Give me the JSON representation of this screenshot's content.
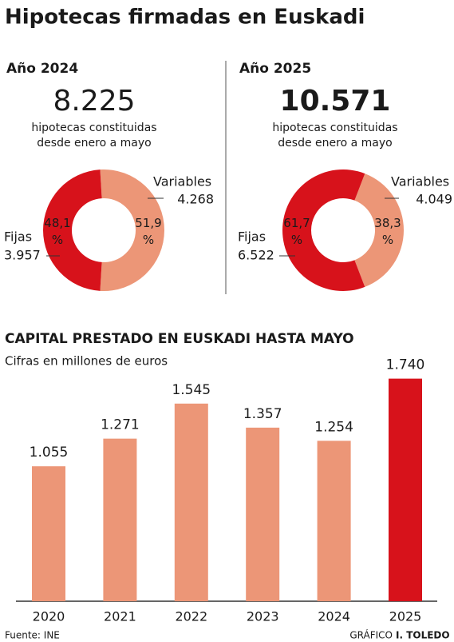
{
  "title": "Hipotecas firmadas en Euskadi",
  "chart_data": [
    {
      "type": "pie",
      "title": "Año 2024",
      "total": {
        "value": 8225,
        "label": "8.225"
      },
      "subtitle": [
        "hipotecas constituidas",
        "desde enero a mayo"
      ],
      "categories": [
        "Fijas",
        "Variables"
      ],
      "values": [
        48.1,
        51.9
      ],
      "value_labels": [
        "48,1 %",
        "51,9 %"
      ],
      "counts": [
        {
          "value": 3957,
          "label": "3.957"
        },
        {
          "value": 4268,
          "label": "4.268"
        }
      ],
      "colors": [
        "#d7121b",
        "#ec9677"
      ]
    },
    {
      "type": "pie",
      "title": "Año 2025",
      "total": {
        "value": 10571,
        "label": "10.571"
      },
      "subtitle": [
        "hipotecas constituidas",
        "desde enero a mayo"
      ],
      "categories": [
        "Fijas",
        "Variables"
      ],
      "values": [
        61.7,
        38.3
      ],
      "value_labels": [
        "61,7 %",
        "38,3 %"
      ],
      "counts": [
        {
          "value": 6522,
          "label": "6.522"
        },
        {
          "value": 4049,
          "label": "4.049"
        }
      ],
      "colors": [
        "#d7121b",
        "#ec9677"
      ]
    },
    {
      "type": "bar",
      "title": "CAPITAL PRESTADO EN EUSKADI HASTA MAYO",
      "subtitle": "Cifras en millones de euros",
      "categories": [
        "2020",
        "2021",
        "2022",
        "2023",
        "2024",
        "2025"
      ],
      "values": [
        1055,
        1271,
        1545,
        1357,
        1254,
        1740
      ],
      "value_labels": [
        "1.055",
        "1.271",
        "1.545",
        "1.357",
        "1.254",
        "1.740"
      ],
      "colors": [
        "#ec9677",
        "#ec9677",
        "#ec9677",
        "#ec9677",
        "#ec9677",
        "#d7121b"
      ]
    }
  ],
  "source": "Fuente: INE",
  "credit": [
    "GRÁFICO",
    "I. TOLEDO"
  ]
}
